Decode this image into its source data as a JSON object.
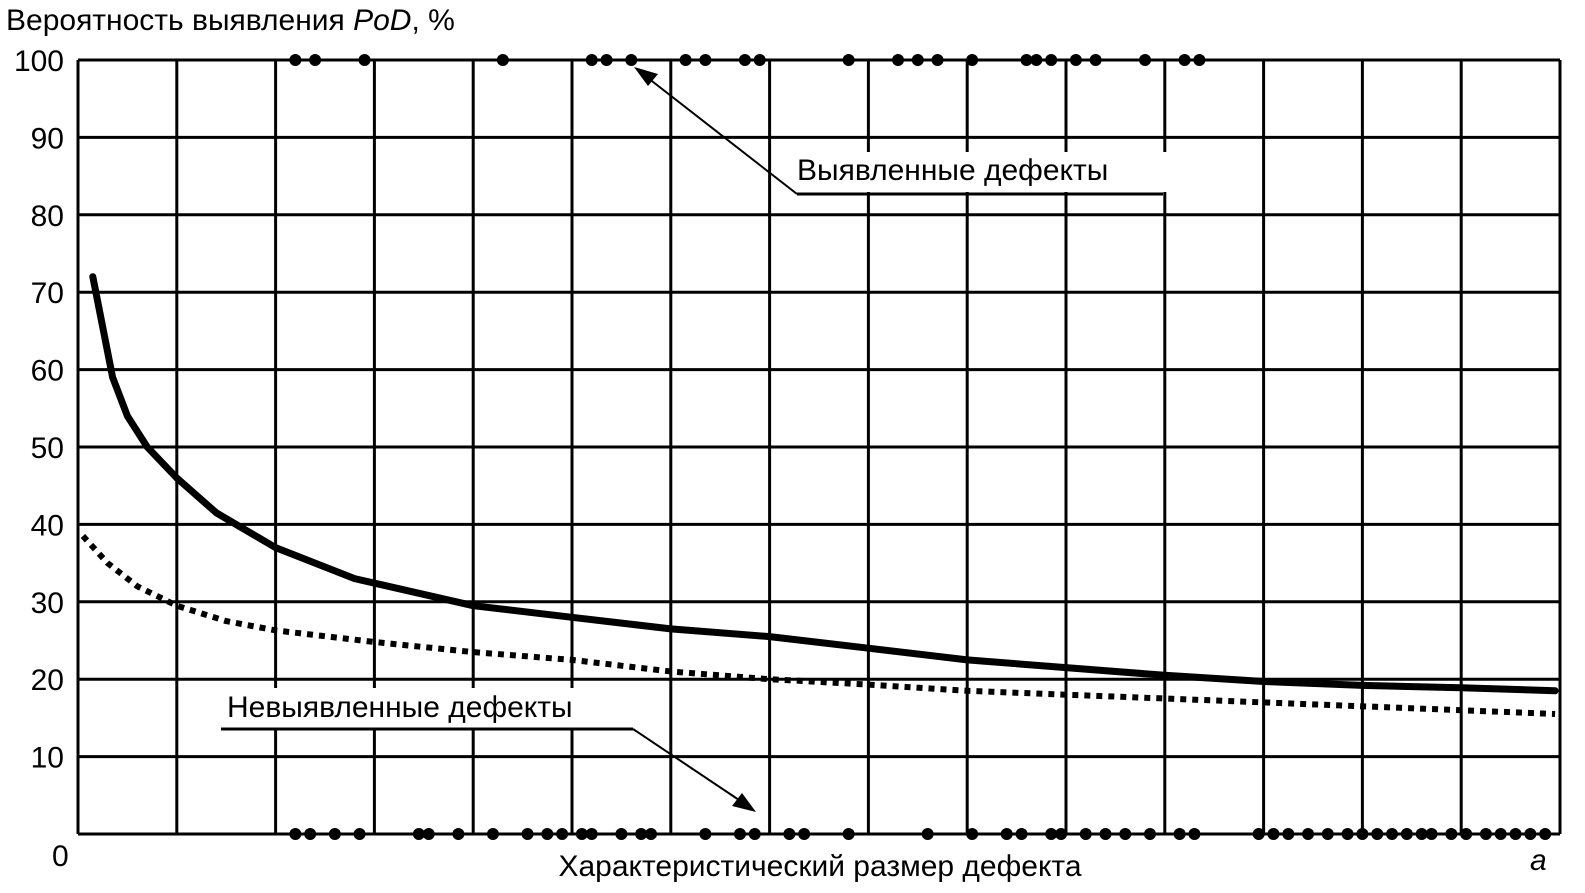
{
  "chart_data": {
    "type": "line",
    "ylabel_prefix": "Вероятность выявления ",
    "ylabel_italic": "PoD",
    "ylabel_suffix": ", %",
    "xlabel": "Характеристический размер дефекта",
    "x_origin_label": "0",
    "x_end_label": "a",
    "ylim": [
      0,
      100
    ],
    "yticks": [
      10,
      20,
      30,
      40,
      50,
      60,
      70,
      80,
      90,
      100
    ],
    "xlim": [
      0,
      15
    ],
    "grid": true,
    "annotations": {
      "detected": "Выявленные дефекты",
      "undetected": "Невыявленные дефекты"
    },
    "series": [
      {
        "style": "solid",
        "x": [
          0.15,
          0.35,
          0.5,
          0.7,
          1.0,
          1.4,
          2.0,
          2.8,
          4.0,
          5.0,
          6.0,
          7.0,
          8.0,
          9.0,
          10.0,
          11.0,
          12.0,
          13.0,
          14.0,
          14.95
        ],
        "y": [
          72,
          59,
          54,
          50,
          46,
          41.5,
          37,
          33,
          29.5,
          28,
          26.5,
          25.5,
          24,
          22.5,
          21.5,
          20.5,
          19.7,
          19.2,
          18.9,
          18.5
        ]
      },
      {
        "style": "dotted",
        "x": [
          0.05,
          0.3,
          0.6,
          1.0,
          1.5,
          2.0,
          3.0,
          4.0,
          5.0,
          6.0,
          7.0,
          8.0,
          9.0,
          10.0,
          11.0,
          12.0,
          13.0,
          14.0,
          14.95
        ],
        "y": [
          38.5,
          35,
          32,
          29.5,
          27.5,
          26.3,
          24.8,
          23.5,
          22.5,
          21,
          20,
          19.3,
          18.5,
          18,
          17.5,
          17,
          16.5,
          16,
          15.5
        ]
      }
    ],
    "detected_points_x": [
      2.2,
      2.4,
      2.9,
      4.3,
      5.2,
      5.35,
      5.6,
      6.15,
      6.35,
      6.75,
      6.9,
      7.8,
      8.3,
      8.5,
      8.7,
      9.05,
      9.6,
      9.7,
      9.85,
      10.1,
      10.3,
      10.8,
      11.2,
      11.35
    ],
    "undetected_points_x": [
      2.2,
      2.35,
      2.6,
      2.85,
      3.45,
      3.55,
      3.85,
      4.2,
      4.55,
      4.75,
      4.9,
      5.1,
      5.2,
      5.5,
      5.7,
      5.8,
      6.35,
      6.7,
      6.85,
      7.2,
      7.35,
      7.8,
      8.6,
      9.05,
      9.4,
      9.55,
      9.85,
      9.95,
      10.2,
      10.4,
      10.6,
      10.85,
      11.15,
      11.3,
      11.95,
      12.1,
      12.25,
      12.45,
      12.65,
      12.85,
      13.0,
      13.15,
      13.3,
      13.45,
      13.6,
      13.7,
      13.9,
      14.05,
      14.25,
      14.4,
      14.55,
      14.7,
      14.85
    ]
  }
}
